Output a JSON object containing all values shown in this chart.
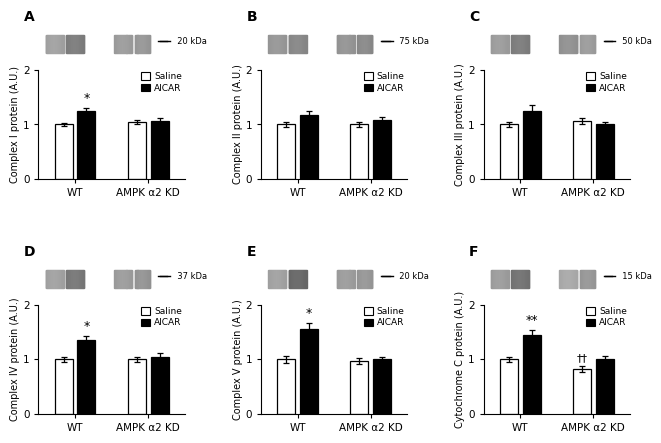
{
  "panels": [
    {
      "label": "A",
      "ylabel": "Complex I protein (A.U.)",
      "kda": "20 kDa",
      "bars": {
        "WT": {
          "saline": 1.0,
          "aicar": 1.25
        },
        "AMPK": {
          "saline": 1.04,
          "aicar": 1.07
        }
      },
      "errors": {
        "WT": {
          "saline": 0.03,
          "aicar": 0.05
        },
        "AMPK": {
          "saline": 0.04,
          "aicar": 0.05
        }
      },
      "sig_aicar_wt": "*",
      "sig_aicar_ampk": "",
      "wb_intensities": [
        0.62,
        0.48,
        0.6,
        0.58
      ]
    },
    {
      "label": "B",
      "ylabel": "Complex II protein (A.U.)",
      "kda": "75 kDa",
      "bars": {
        "WT": {
          "saline": 1.0,
          "aicar": 1.18
        },
        "AMPK": {
          "saline": 1.0,
          "aicar": 1.08
        }
      },
      "errors": {
        "WT": {
          "saline": 0.04,
          "aicar": 0.07
        },
        "AMPK": {
          "saline": 0.04,
          "aicar": 0.06
        }
      },
      "sig_aicar_wt": "",
      "sig_aicar_ampk": "",
      "wb_intensities": [
        0.58,
        0.52,
        0.57,
        0.53
      ]
    },
    {
      "label": "C",
      "ylabel": "Complex III protein (A.U.)",
      "kda": "50 kDa",
      "bars": {
        "WT": {
          "saline": 1.0,
          "aicar": 1.25
        },
        "AMPK": {
          "saline": 1.06,
          "aicar": 1.0
        }
      },
      "errors": {
        "WT": {
          "saline": 0.04,
          "aicar": 0.1
        },
        "AMPK": {
          "saline": 0.05,
          "aicar": 0.04
        }
      },
      "sig_aicar_wt": "",
      "sig_aicar_ampk": "",
      "wb_intensities": [
        0.6,
        0.48,
        0.56,
        0.6
      ]
    },
    {
      "label": "D",
      "ylabel": "Complex IV protein (A.U.)",
      "kda": "37 kDa",
      "bars": {
        "WT": {
          "saline": 1.0,
          "aicar": 1.35
        },
        "AMPK": {
          "saline": 1.0,
          "aicar": 1.05
        }
      },
      "errors": {
        "WT": {
          "saline": 0.04,
          "aicar": 0.08
        },
        "AMPK": {
          "saline": 0.05,
          "aicar": 0.06
        }
      },
      "sig_aicar_wt": "*",
      "sig_aicar_ampk": "",
      "wb_intensities": [
        0.62,
        0.46,
        0.6,
        0.57
      ]
    },
    {
      "label": "E",
      "ylabel": "Complex V protein (A.U.)",
      "kda": "20 kDa",
      "bars": {
        "WT": {
          "saline": 1.0,
          "aicar": 1.55
        },
        "AMPK": {
          "saline": 0.97,
          "aicar": 1.0
        }
      },
      "errors": {
        "WT": {
          "saline": 0.07,
          "aicar": 0.12
        },
        "AMPK": {
          "saline": 0.06,
          "aicar": 0.05
        }
      },
      "sig_aicar_wt": "*",
      "sig_aicar_ampk": "",
      "wb_intensities": [
        0.62,
        0.4,
        0.6,
        0.58
      ]
    },
    {
      "label": "F",
      "ylabel": "Cytochrome C protein (A.U.)",
      "kda": "15 kDa",
      "bars": {
        "WT": {
          "saline": 1.0,
          "aicar": 1.45
        },
        "AMPK": {
          "saline": 0.82,
          "aicar": 1.0
        }
      },
      "errors": {
        "WT": {
          "saline": 0.05,
          "aicar": 0.08
        },
        "AMPK": {
          "saline": 0.05,
          "aicar": 0.06
        }
      },
      "sig_aicar_wt": "**",
      "sig_aicar_ampk": "††",
      "wb_intensities": [
        0.6,
        0.44,
        0.65,
        0.58
      ]
    }
  ],
  "bar_colors": {
    "saline": "white",
    "aicar": "black"
  },
  "bar_edge": "black",
  "legend_labels": [
    "Saline",
    "AICAR"
  ],
  "xtick_labels": [
    "WT",
    "AMPK α2 KD"
  ],
  "ylim": [
    0,
    2
  ],
  "yticks": [
    0,
    1,
    2
  ],
  "fig_bg": "white"
}
